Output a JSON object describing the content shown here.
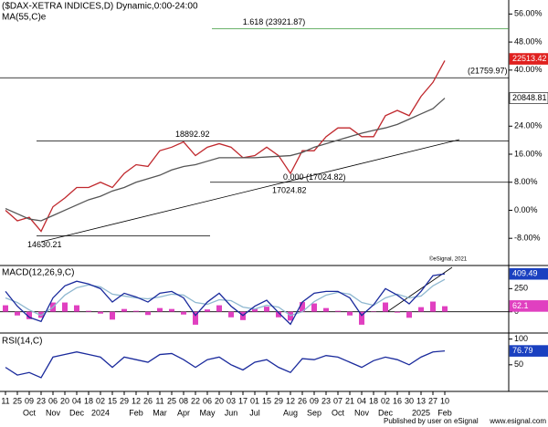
{
  "chart_data": {
    "type": "line",
    "categories": [
      "11",
      "25",
      "09",
      "23",
      "06",
      "20",
      "04",
      "18",
      "02",
      "15",
      "29",
      "12",
      "26",
      "11",
      "25",
      "08",
      "22",
      "06",
      "20",
      "03",
      "17",
      "01",
      "15",
      "29",
      "12",
      "26",
      "09",
      "23",
      "07",
      "21",
      "04",
      "18",
      "02",
      "16",
      "30",
      "13",
      "27",
      "10"
    ],
    "category_groups": [
      null,
      null,
      "Oct",
      null,
      "Nov",
      null,
      "Dec",
      null,
      "2024",
      null,
      null,
      "Feb",
      null,
      "Mar",
      null,
      "Apr",
      null,
      "May",
      null,
      "Jun",
      null,
      "Jul",
      null,
      null,
      "Aug",
      null,
      "Sep",
      null,
      "Oct",
      null,
      "Nov",
      null,
      "Dec",
      null,
      null,
      "2025",
      null,
      "Feb"
    ],
    "footer": "Published by user on eSignal",
    "footer_link": "www.esignal.com",
    "watermark": "©eSignal, 2021",
    "panels": [
      {
        "title": "($DAX-XETRA INDICES,D) Dynamic,0:00-24:00",
        "subtitle": "MA(55,C)e",
        "ylim": [
          -15.5,
          60
        ],
        "yticks": [
          {
            "value": -8,
            "label": "-8.00%"
          },
          {
            "value": 0,
            "label": "0.00%"
          },
          {
            "value": 8,
            "label": "8.00%"
          },
          {
            "value": 16,
            "label": "16.00%"
          },
          {
            "value": 24,
            "label": "24.00%"
          },
          {
            "value": 40,
            "label": "40.00%"
          },
          {
            "value": 48,
            "label": "48.00%"
          },
          {
            "value": 56,
            "label": "56.00%"
          }
        ],
        "series": [
          {
            "type": "line",
            "color": "#c0282d",
            "values": [
              0,
              -3,
              -2,
              -6,
              1,
              3.5,
              6.5,
              6.5,
              8,
              6.5,
              10.5,
              13,
              12.5,
              17,
              18,
              19.5,
              15.6,
              18,
              19,
              18,
              15,
              15.6,
              18,
              15.6,
              10.5,
              17,
              17,
              21,
              23.5,
              23.5,
              21,
              21,
              27,
              28.5,
              27,
              32.5,
              36.5,
              42.7
            ]
          },
          {
            "type": "line",
            "color": "#555555",
            "values": [
              0.5,
              -1,
              -2.5,
              -3,
              -1.5,
              0,
              1.5,
              3,
              4,
              5.5,
              6.5,
              8,
              9,
              10,
              11.5,
              12.5,
              13,
              14,
              15,
              15,
              15,
              15,
              15.2,
              15.4,
              15.6,
              16.5,
              18,
              19,
              20,
              21,
              22,
              22.8,
              23.5,
              24.5,
              26,
              27.5,
              29,
              32
            ]
          }
        ],
        "levels": [
          {
            "label": "1.618 (23921.87)",
            "value": 51.8,
            "color": "#3a9a3a"
          },
          {
            "label": "(21759.97)",
            "value": 37.8,
            "color": "#000000"
          },
          {
            "label": "18892.92",
            "value": 19.8,
            "color": "#000000"
          },
          {
            "label": "0.000 (17024.82)",
            "value": 8,
            "color": "#000000"
          },
          {
            "label": "14630.21",
            "value": -7.3,
            "color": "#000000"
          }
        ],
        "annotations": [
          "17024.82"
        ],
        "boxes": [
          {
            "label": "22513.42",
            "value": 43.2,
            "color": "#e0201e"
          },
          {
            "label": "20848.81",
            "value": 32,
            "color": "#ffffff"
          }
        ]
      },
      {
        "title": "MACD(12,26,9,C)",
        "ylim": [
          -220,
          490
        ],
        "yticks": [
          0,
          250
        ],
        "series": [
          {
            "type": "bar",
            "color": "#e040c0",
            "values": [
              70,
              -40,
              -80,
              -65,
              100,
              100,
              70,
              10,
              -20,
              -85,
              30,
              10,
              -35,
              40,
              30,
              -30,
              -140,
              25,
              70,
              -60,
              -90,
              30,
              55,
              -60,
              -95,
              105,
              90,
              40,
              10,
              -40,
              -140,
              5,
              100,
              -10,
              -65,
              50,
              110,
              60
            ]
          },
          {
            "type": "line",
            "color": "#8fb8d0",
            "values": [
              150,
              100,
              20,
              -40,
              50,
              180,
              260,
              290,
              270,
              190,
              170,
              150,
              140,
              160,
              190,
              180,
              100,
              80,
              130,
              120,
              50,
              30,
              70,
              50,
              -40,
              0,
              110,
              180,
              210,
              190,
              100,
              70,
              150,
              190,
              150,
              170,
              280,
              350
            ]
          },
          {
            "type": "line",
            "color": "#1a2a9c",
            "values": [
              220,
              60,
              -60,
              -105,
              150,
              280,
              330,
              300,
              250,
              105,
              200,
              160,
              105,
              200,
              220,
              150,
              -40,
              105,
              200,
              60,
              -40,
              60,
              125,
              -10,
              -135,
              105,
              200,
              220,
              220,
              150,
              -40,
              75,
              250,
              180,
              85,
              220,
              390,
              410
            ]
          }
        ],
        "boxes": [
          {
            "label": "409.49",
            "value": 409,
            "color": "#1a40c0"
          },
          {
            "label": "62.1",
            "value": 62,
            "color": "#e040c0"
          }
        ]
      },
      {
        "title": "RSI(14,C)",
        "ylim": [
          0,
          110
        ],
        "yticks": [
          50,
          100
        ],
        "series": [
          {
            "type": "line",
            "color": "#1a2a9c",
            "values": [
              45,
              30,
              35,
              25,
              65,
              70,
              75,
              70,
              65,
              45,
              65,
              60,
              55,
              70,
              72,
              60,
              45,
              60,
              65,
              50,
              40,
              55,
              60,
              45,
              35,
              62,
              60,
              68,
              65,
              55,
              45,
              58,
              65,
              60,
              50,
              65,
              75,
              77
            ]
          }
        ],
        "boxes": [
          {
            "label": "76.79",
            "value": 77,
            "color": "#1a40c0"
          }
        ]
      }
    ]
  }
}
